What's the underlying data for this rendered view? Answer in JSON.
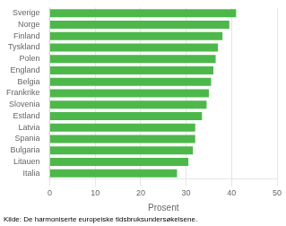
{
  "chart_data": {
    "type": "bar",
    "orientation": "horizontal",
    "categories": [
      "Sverige",
      "Norge",
      "Finland",
      "Tyskland",
      "Polen",
      "England",
      "Belgia",
      "Frankrike",
      "Slovenia",
      "Estland",
      "Latvia",
      "Spania",
      "Bulgaria",
      "Litauen",
      "Italia"
    ],
    "values": [
      41,
      39.5,
      38,
      37,
      36.5,
      36,
      35.5,
      35,
      34.5,
      33.5,
      32,
      32,
      31.5,
      30.5,
      28
    ],
    "color": "#4db84a",
    "xlabel": "Prosent",
    "xlim": [
      0,
      50
    ],
    "xticks": [
      0,
      10,
      20,
      30,
      40,
      50
    ],
    "grid": true,
    "annotation": "Kilde: De harmoniserte europeiske tidsbruksundersøkelsene."
  }
}
